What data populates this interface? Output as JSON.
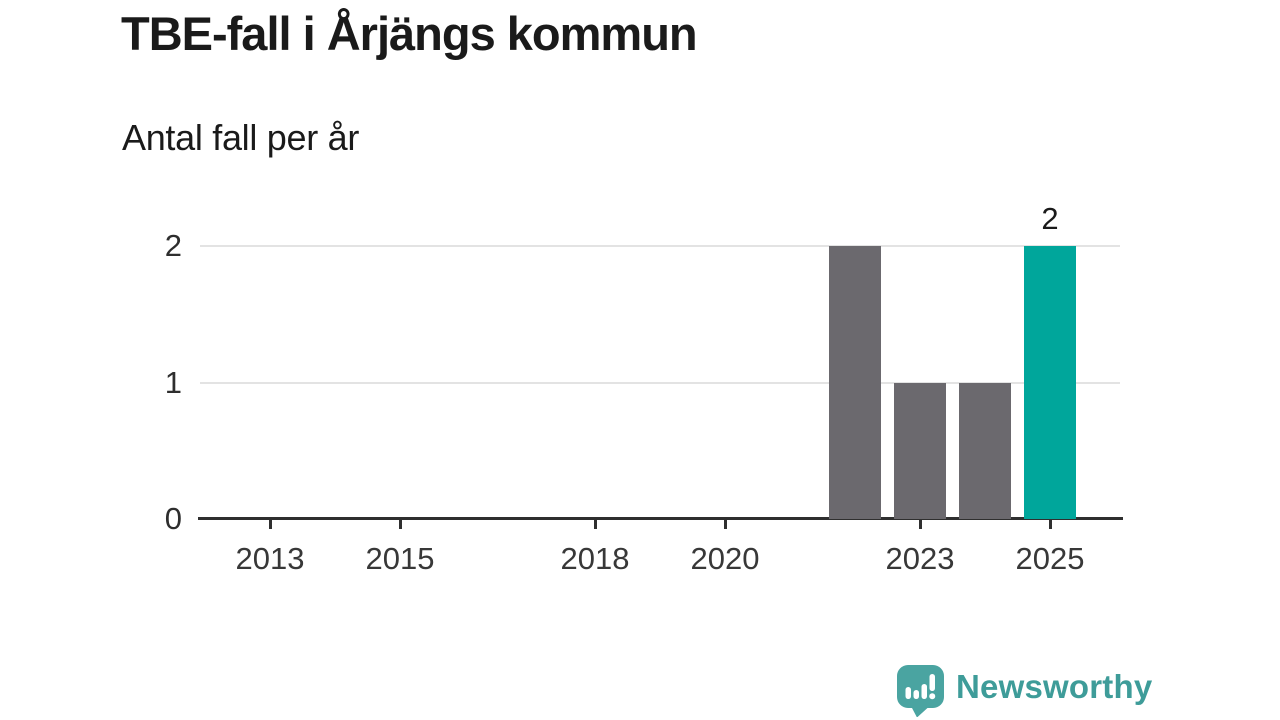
{
  "chart_data": {
    "type": "bar",
    "title": "TBE-fall i Årjängs kommun",
    "subtitle": "Antal fall per år",
    "categories": [
      2012,
      2013,
      2014,
      2015,
      2016,
      2017,
      2018,
      2019,
      2020,
      2021,
      2022,
      2023,
      2024,
      2025
    ],
    "values": [
      0,
      0,
      0,
      0,
      0,
      0,
      0,
      0,
      0,
      0,
      2,
      1,
      1,
      2
    ],
    "highlight_category": 2025,
    "highlight_value_label": "2",
    "x_ticks": [
      2013,
      2015,
      2018,
      2020,
      2023,
      2025
    ],
    "y_ticks": [
      0,
      1,
      2
    ],
    "ylim": [
      0,
      2
    ],
    "xlabel": "",
    "ylabel": "",
    "grid": "horizontal",
    "legend": "none",
    "colors": {
      "bar_default": "#6B696E",
      "bar_highlight": "#00A69B",
      "axis": "#2F2F2F",
      "gridline": "#E3E3E3",
      "title_text": "#1A1A1A",
      "tick_text": "#383838"
    }
  },
  "footer": {
    "brand": "Newsworthy",
    "brand_text_color": "#3E9C99",
    "brand_icon_color": "#4AA4A1",
    "logo_icon": "newsworthy-speech-bubble-bar-chart-icon"
  }
}
